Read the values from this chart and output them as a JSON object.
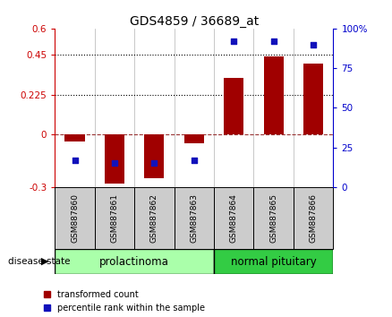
{
  "title": "GDS4859 / 36689_at",
  "samples": [
    "GSM887860",
    "GSM887861",
    "GSM887862",
    "GSM887863",
    "GSM887864",
    "GSM887865",
    "GSM887866"
  ],
  "red_values": [
    -0.04,
    -0.28,
    -0.25,
    -0.05,
    0.32,
    0.44,
    0.4
  ],
  "blue_values": [
    17,
    15,
    15,
    17,
    92,
    92,
    90
  ],
  "ylim_left": [
    -0.3,
    0.6
  ],
  "ylim_right": [
    0,
    100
  ],
  "yticks_left": [
    -0.3,
    0.0,
    0.225,
    0.45,
    0.6
  ],
  "ytick_labels_left": [
    "-0.3",
    "0",
    "0.225",
    "0.45",
    "0.6"
  ],
  "yticks_right": [
    0,
    25,
    50,
    75,
    100
  ],
  "ytick_labels_right": [
    "0",
    "25",
    "50",
    "75",
    "100%"
  ],
  "dotted_lines": [
    0.225,
    0.45
  ],
  "zero_line": 0.0,
  "bar_color": "#a00000",
  "dot_color": "#1111bb",
  "group1_label": "prolactinoma",
  "group2_label": "normal pituitary",
  "group1_indices": [
    0,
    1,
    2,
    3
  ],
  "group2_indices": [
    4,
    5,
    6
  ],
  "group1_color": "#aaffaa",
  "group2_color": "#33cc44",
  "disease_state_label": "disease state",
  "legend_red": "transformed count",
  "legend_blue": "percentile rank within the sample",
  "bar_width": 0.5,
  "background_color": "#ffffff",
  "zero_line_color": "#993333",
  "sample_bg_color": "#cccccc",
  "left_axis_color": "#cc0000",
  "right_axis_color": "#0000cc",
  "tick_fontsize": 7.5,
  "sample_fontsize": 6.5,
  "legend_fontsize": 7.0,
  "title_fontsize": 10
}
